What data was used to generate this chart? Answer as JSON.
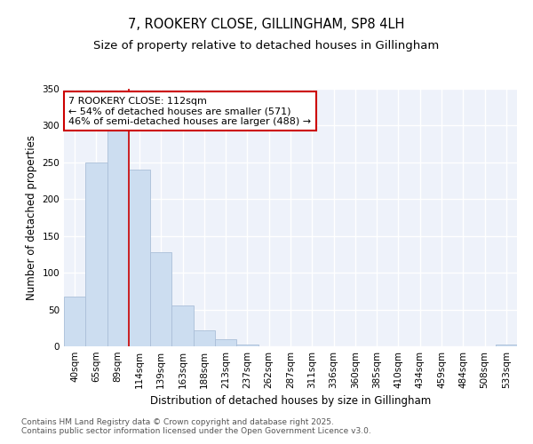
{
  "title": "7, ROOKERY CLOSE, GILLINGHAM, SP8 4LH",
  "subtitle": "Size of property relative to detached houses in Gillingham",
  "xlabel": "Distribution of detached houses by size in Gillingham",
  "ylabel": "Number of detached properties",
  "categories": [
    "40sqm",
    "65sqm",
    "89sqm",
    "114sqm",
    "139sqm",
    "163sqm",
    "188sqm",
    "213sqm",
    "237sqm",
    "262sqm",
    "287sqm",
    "311sqm",
    "336sqm",
    "360sqm",
    "385sqm",
    "410sqm",
    "434sqm",
    "459sqm",
    "484sqm",
    "508sqm",
    "533sqm"
  ],
  "values": [
    68,
    250,
    295,
    240,
    128,
    55,
    22,
    10,
    3,
    0,
    0,
    0,
    0,
    0,
    0,
    0,
    0,
    0,
    0,
    0,
    2
  ],
  "bar_color": "#ccddf0",
  "bar_edge_color": "#aabfd8",
  "vline_index": 2.5,
  "vline_color": "#cc0000",
  "annotation_text": "7 ROOKERY CLOSE: 112sqm\n← 54% of detached houses are smaller (571)\n46% of semi-detached houses are larger (488) →",
  "annotation_box_facecolor": "white",
  "annotation_box_edgecolor": "#cc0000",
  "ylim": [
    0,
    350
  ],
  "yticks": [
    0,
    50,
    100,
    150,
    200,
    250,
    300,
    350
  ],
  "plot_bg_color": "#eef2fa",
  "grid_color": "white",
  "footer_text": "Contains HM Land Registry data © Crown copyright and database right 2025.\nContains public sector information licensed under the Open Government Licence v3.0.",
  "title_fontsize": 10.5,
  "subtitle_fontsize": 9.5,
  "xlabel_fontsize": 8.5,
  "ylabel_fontsize": 8.5,
  "tick_fontsize": 7.5,
  "annotation_fontsize": 8,
  "footer_fontsize": 6.5
}
